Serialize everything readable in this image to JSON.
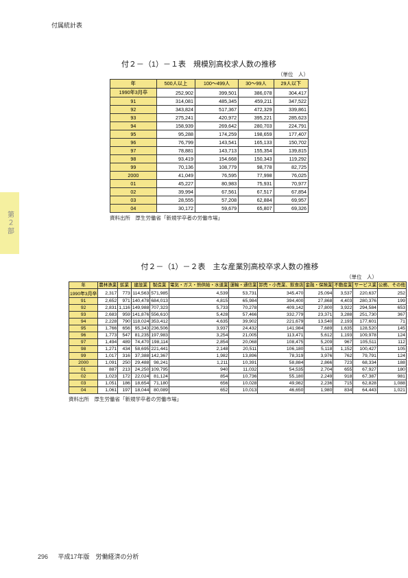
{
  "page_header": "付属統計表",
  "side_tab": "第２部",
  "footer": {
    "page_num": "296",
    "text": "平成17年版　労働経済の分析"
  },
  "table1": {
    "title": "付２－（1）－１表　規模別高校求人数の推移",
    "unit": "（単位　人）",
    "columns": [
      "年",
      "500人以上",
      "100～499人",
      "30～99人",
      "29人以下"
    ],
    "rows": [
      [
        "1990年3月卒",
        "252,902",
        "399,501",
        "386,078",
        "304,417"
      ],
      [
        "91",
        "314,081",
        "485,345",
        "459,211",
        "347,522"
      ],
      [
        "92",
        "343,824",
        "517,367",
        "472,329",
        "339,861"
      ],
      [
        "93",
        "275,241",
        "420,972",
        "395,221",
        "285,623"
      ],
      [
        "94",
        "158,939",
        "269,642",
        "280,703",
        "224,791"
      ],
      [
        "95",
        "95,288",
        "174,259",
        "198,659",
        "177,407"
      ],
      [
        "96",
        "76,799",
        "143,541",
        "165,133",
        "150,702"
      ],
      [
        "97",
        "78,881",
        "143,713",
        "155,354",
        "139,815"
      ],
      [
        "98",
        "93,419",
        "154,668",
        "150,343",
        "119,292"
      ],
      [
        "99",
        "70,136",
        "108,779",
        "98,778",
        "82,725"
      ],
      [
        "2000",
        "41,049",
        "76,595",
        "77,998",
        "76,025"
      ],
      [
        "01",
        "45,227",
        "80,983",
        "75,931",
        "70,977"
      ],
      [
        "02",
        "39,994",
        "67,561",
        "67,517",
        "67,854"
      ],
      [
        "03",
        "28,555",
        "57,208",
        "62,884",
        "69,957"
      ],
      [
        "04",
        "30,172",
        "59,679",
        "65,807",
        "69,326"
      ]
    ],
    "source": "資料出所　厚生労働省「新規学卒者の労働市場」"
  },
  "table2": {
    "title": "付２－（1）－２表　主な産業別高校卒求人数の推移",
    "unit": "（単位　人）",
    "columns": [
      "年",
      "農林漁業",
      "鉱業",
      "建設業",
      "製造業",
      "電気・ガス・熱供給・水道業",
      "運輸・通信業",
      "卸売・小売業、飲食店",
      "金融・保険業",
      "不動産業",
      "サービス業",
      "公務、その他"
    ],
    "rows": [
      [
        "1990年3月卒",
        "2,317",
        "773",
        "114,563",
        "571,985",
        "4,539",
        "53,731",
        "345,470",
        "25,094",
        "3,537",
        "220,637",
        "252"
      ],
      [
        "91",
        "2,652",
        "971",
        "140,478",
        "684,013",
        "4,815",
        "65,984",
        "394,400",
        "27,868",
        "4,403",
        "280,376",
        "199"
      ],
      [
        "92",
        "2,831",
        "1,116",
        "149,988",
        "707,323",
        "5,733",
        "70,278",
        "409,142",
        "27,800",
        "3,922",
        "294,584",
        "653"
      ],
      [
        "93",
        "2,683",
        "959",
        "141,876",
        "556,610",
        "5,428",
        "57,466",
        "332,779",
        "23,371",
        "3,288",
        "251,730",
        "367"
      ],
      [
        "94",
        "2,228",
        "790",
        "118,024",
        "353,412",
        "4,635",
        "39,902",
        "221,679",
        "13,540",
        "2,193",
        "177,601",
        "71"
      ],
      [
        "95",
        "1,766",
        "656",
        "95,343",
        "236,506",
        "3,937",
        "24,432",
        "141,984",
        "7,689",
        "1,635",
        "128,520",
        "145"
      ],
      [
        "96",
        "1,773",
        "547",
        "81,235",
        "197,983",
        "3,254",
        "21,005",
        "113,471",
        "5,612",
        "1,193",
        "109,978",
        "124"
      ],
      [
        "97",
        "1,494",
        "489",
        "74,470",
        "198,114",
        "2,854",
        "20,068",
        "108,475",
        "5,209",
        "967",
        "105,511",
        "112"
      ],
      [
        "98",
        "1,271",
        "434",
        "58,695",
        "221,441",
        "2,148",
        "20,511",
        "106,180",
        "5,118",
        "1,152",
        "100,427",
        "105"
      ],
      [
        "99",
        "1,017",
        "316",
        "37,388",
        "142,367",
        "1,982",
        "13,896",
        "78,319",
        "3,976",
        "762",
        "79,791",
        "124"
      ],
      [
        "2000",
        "1,091",
        "250",
        "29,488",
        "98,241",
        "1,211",
        "10,391",
        "58,884",
        "2,866",
        "723",
        "68,334",
        "188"
      ],
      [
        "01",
        "887",
        "213",
        "24,250",
        "109,795",
        "940",
        "11,032",
        "54,535",
        "2,704",
        "655",
        "67,927",
        "180"
      ],
      [
        "02",
        "1,023",
        "172",
        "22,024",
        "81,124",
        "854",
        "10,736",
        "55,180",
        "2,249",
        "918",
        "67,387",
        "981"
      ],
      [
        "03",
        "1,051",
        "186",
        "18,654",
        "71,180",
        "656",
        "10,028",
        "49,982",
        "2,236",
        "715",
        "62,828",
        "1,088"
      ],
      [
        "04",
        "1,061",
        "197",
        "18,044",
        "80,089",
        "652",
        "10,013",
        "46,650",
        "1,980",
        "834",
        "64,443",
        "1,021"
      ]
    ],
    "source": "資料出所　厚生労働省「新規学卒者の労働市場」"
  }
}
